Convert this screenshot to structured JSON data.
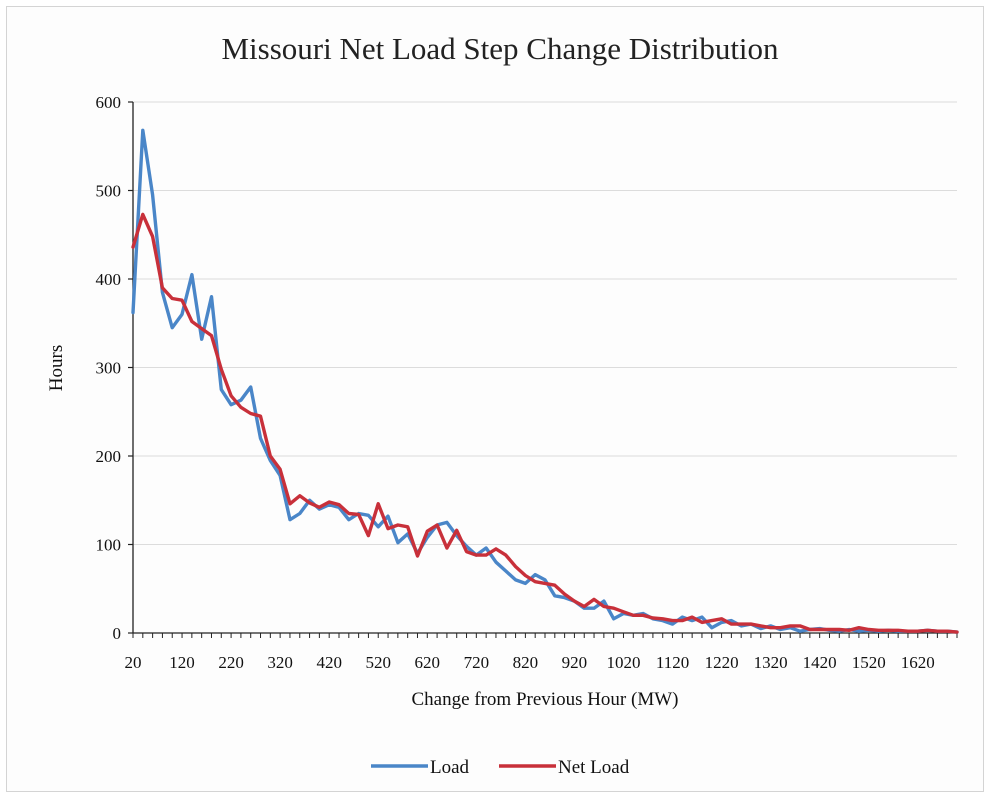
{
  "chart_data": {
    "type": "line",
    "title": "Missouri Net Load Step Change Distribution",
    "xlabel": "Change from Previous Hour (MW)",
    "ylabel": "Hours",
    "ylim": [
      0,
      600
    ],
    "yticks": [
      0,
      100,
      200,
      300,
      400,
      500,
      600
    ],
    "xlim": [
      20,
      1700
    ],
    "xtick_values": [
      20,
      120,
      220,
      320,
      420,
      520,
      620,
      720,
      820,
      920,
      1020,
      1120,
      1220,
      1320,
      1420,
      1520,
      1620
    ],
    "xtick_labels": [
      "20",
      "120",
      "220",
      "320",
      "420",
      "520",
      "620",
      "720",
      "820",
      "920",
      "1020",
      "1120",
      "1220",
      "1320",
      "1420",
      "1520",
      "1620"
    ],
    "grid": "horizontal",
    "legend_position": "bottom",
    "series": [
      {
        "name": "Load",
        "color": "#4a86c8",
        "x": [
          20,
          40,
          60,
          80,
          100,
          120,
          140,
          160,
          180,
          200,
          220,
          240,
          260,
          280,
          300,
          320,
          340,
          360,
          380,
          400,
          420,
          440,
          460,
          480,
          500,
          520,
          540,
          560,
          580,
          600,
          620,
          640,
          660,
          680,
          700,
          720,
          740,
          760,
          780,
          800,
          820,
          840,
          860,
          880,
          900,
          920,
          940,
          960,
          980,
          1000,
          1020,
          1040,
          1060,
          1080,
          1100,
          1120,
          1140,
          1160,
          1180,
          1200,
          1220,
          1240,
          1260,
          1280,
          1300,
          1320,
          1340,
          1360,
          1380,
          1400,
          1420,
          1440,
          1460,
          1480,
          1500,
          1520,
          1540,
          1560,
          1580,
          1600,
          1620,
          1640,
          1660,
          1680,
          1700
        ],
        "y": [
          362,
          568,
          495,
          385,
          345,
          360,
          405,
          332,
          380,
          275,
          258,
          263,
          278,
          220,
          195,
          178,
          128,
          135,
          150,
          140,
          145,
          142,
          128,
          135,
          133,
          120,
          132,
          102,
          112,
          90,
          108,
          122,
          125,
          110,
          98,
          88,
          96,
          80,
          70,
          60,
          56,
          66,
          60,
          42,
          40,
          36,
          28,
          28,
          36,
          16,
          22,
          20,
          22,
          16,
          14,
          10,
          18,
          14,
          18,
          6,
          12,
          14,
          8,
          10,
          5,
          8,
          4,
          6,
          2,
          4,
          5,
          3,
          2,
          4,
          2,
          3,
          2,
          3,
          2,
          2,
          2,
          3,
          2,
          2,
          1
        ]
      },
      {
        "name": "Net Load",
        "color": "#c8303a",
        "x": [
          20,
          40,
          60,
          80,
          100,
          120,
          140,
          160,
          180,
          200,
          220,
          240,
          260,
          280,
          300,
          320,
          340,
          360,
          380,
          400,
          420,
          440,
          460,
          480,
          500,
          520,
          540,
          560,
          580,
          600,
          620,
          640,
          660,
          680,
          700,
          720,
          740,
          760,
          780,
          800,
          820,
          840,
          860,
          880,
          900,
          920,
          940,
          960,
          980,
          1000,
          1020,
          1040,
          1060,
          1080,
          1100,
          1120,
          1140,
          1160,
          1180,
          1200,
          1220,
          1240,
          1260,
          1280,
          1300,
          1320,
          1340,
          1360,
          1380,
          1400,
          1420,
          1440,
          1460,
          1480,
          1500,
          1520,
          1540,
          1560,
          1580,
          1600,
          1620,
          1640,
          1660,
          1680,
          1700
        ],
        "y": [
          436,
          473,
          448,
          390,
          378,
          376,
          352,
          344,
          336,
          298,
          268,
          255,
          248,
          245,
          200,
          185,
          146,
          155,
          147,
          142,
          148,
          145,
          135,
          134,
          110,
          146,
          118,
          122,
          120,
          87,
          115,
          122,
          96,
          116,
          92,
          88,
          88,
          95,
          88,
          75,
          65,
          58,
          56,
          54,
          44,
          36,
          30,
          38,
          30,
          28,
          24,
          20,
          20,
          17,
          16,
          14,
          14,
          18,
          12,
          14,
          16,
          10,
          10,
          10,
          8,
          6,
          6,
          8,
          8,
          4,
          4,
          4,
          4,
          3,
          6,
          4,
          3,
          3,
          3,
          2,
          2,
          3,
          2,
          2,
          1
        ]
      }
    ]
  }
}
